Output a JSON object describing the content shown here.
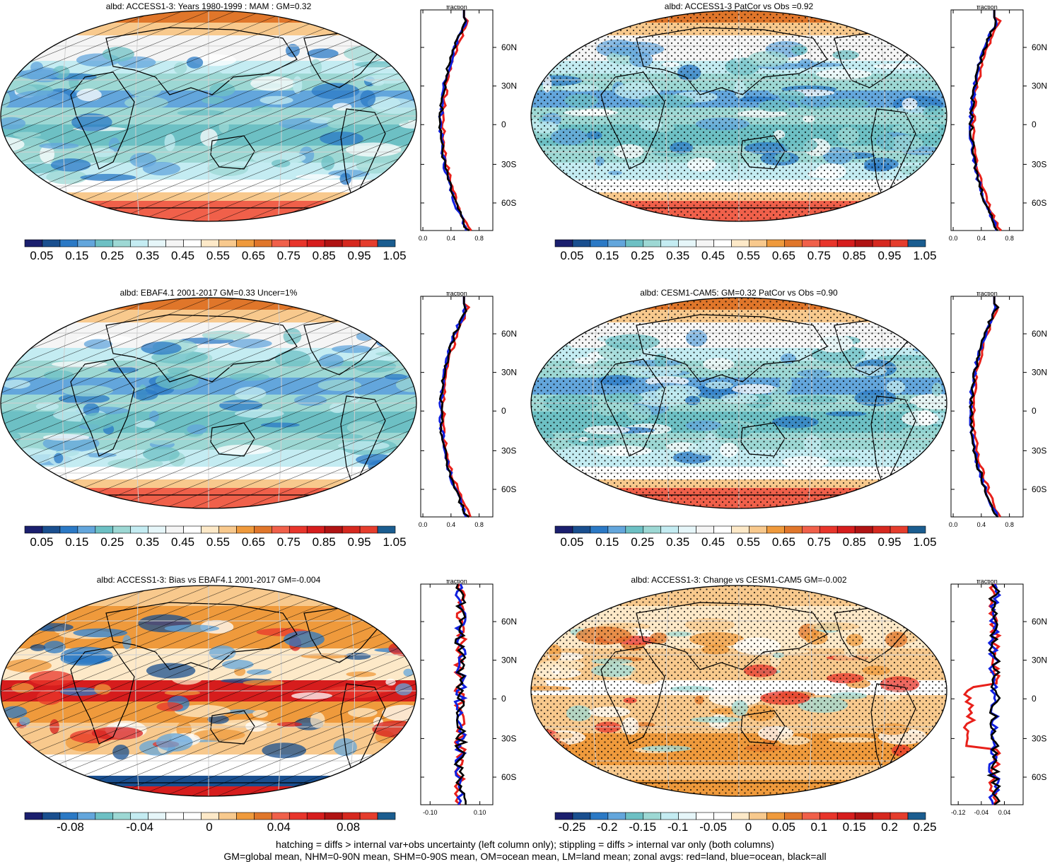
{
  "palette_abs": [
    "#1b1f6e",
    "#1a4f8f",
    "#2b79c5",
    "#63a6dc",
    "#6dc0c4",
    "#9dd8d4",
    "#c4ecf2",
    "#e6f6f9",
    "#f5f5f5",
    "#ffffff",
    "#fde9c8",
    "#f8c98d",
    "#ef9a3c",
    "#e0762a",
    "#f0604a",
    "#e8352b",
    "#d61d1d",
    "#b01313",
    "#d6281f",
    "#e53d2d",
    "#1b5d90"
  ],
  "palette_diff": [
    "#1b1f6e",
    "#1a4f8f",
    "#2b79c5",
    "#63a6dc",
    "#6dc0c4",
    "#9dd8d4",
    "#c4ecf2",
    "#e6f6f9",
    "#ffffff",
    "#ffffff",
    "#fde9c8",
    "#f8c98d",
    "#ef9a3c",
    "#e0762a",
    "#f0604a",
    "#e8352b",
    "#d61d1d",
    "#b01313",
    "#d6281f",
    "#e53d2d",
    "#1b5d90"
  ],
  "panels": [
    {
      "title": "albd: ACCESS1-3: Years 1980-1999 : MAM : GM=0.32",
      "kind": "abs",
      "overlay": "hatch",
      "cbar_labels": [
        "0.05",
        "0.15",
        "0.25",
        "0.35",
        "0.45",
        "0.55",
        "0.65",
        "0.75",
        "0.85",
        "0.95",
        "1.05"
      ],
      "zonal_header": "fraction",
      "zonal_xticks": [
        "0.0",
        "0.4",
        "0.8"
      ],
      "zonal_yticks": [
        "60N",
        "30N",
        "0",
        "30S",
        "60S"
      ]
    },
    {
      "title": "albd: ACCESS1-3 PatCor vs Obs =0.92",
      "kind": "abs",
      "overlay": "stipple",
      "cbar_labels": [
        "0.05",
        "0.15",
        "0.25",
        "0.35",
        "0.45",
        "0.55",
        "0.65",
        "0.75",
        "0.85",
        "0.95",
        "1.05"
      ],
      "zonal_header": "fraction",
      "zonal_xticks": [
        "0.0",
        "0.4",
        "0.8"
      ],
      "zonal_yticks": [
        "60N",
        "30N",
        "0",
        "30S",
        "60S"
      ]
    },
    {
      "title": "albd: EBAF4.1 2001-2017 GM=0.33 Uncer=1%",
      "kind": "abs",
      "overlay": "hatch",
      "cbar_labels": [
        "0.05",
        "0.15",
        "0.25",
        "0.35",
        "0.45",
        "0.55",
        "0.65",
        "0.75",
        "0.85",
        "0.95",
        "1.05"
      ],
      "zonal_header": "fraction",
      "zonal_xticks": [
        "0.0",
        "0.4",
        "0.8"
      ],
      "zonal_yticks": [
        "60N",
        "30N",
        "0",
        "30S",
        "60S"
      ]
    },
    {
      "title": "albd: CESM1-CAM5: GM=0.32 PatCor vs Obs =0.90",
      "kind": "abs",
      "overlay": "stipple",
      "cbar_labels": [
        "0.05",
        "0.15",
        "0.25",
        "0.35",
        "0.45",
        "0.55",
        "0.65",
        "0.75",
        "0.85",
        "0.95",
        "1.05"
      ],
      "zonal_header": "fraction",
      "zonal_xticks": [
        "0.0",
        "0.4",
        "0.8"
      ],
      "zonal_yticks": [
        "60N",
        "30N",
        "0",
        "30S",
        "60S"
      ]
    },
    {
      "title": "albd: ACCESS1-3: Bias vs EBAF4.1 2001-2017 GM=-0.004",
      "kind": "bias",
      "overlay": "hatch",
      "cbar_labels": [
        "-0.08",
        "-0.04",
        "0",
        "0.04",
        "0.08"
      ],
      "zonal_header": "fraction",
      "zonal_xticks": [
        "-0.10",
        "0.10"
      ],
      "zonal_yticks": [
        "60N",
        "30N",
        "0",
        "30S",
        "60S"
      ]
    },
    {
      "title": "albd: ACCESS1-3: Change vs CESM1-CAM5 GM=-0.002",
      "kind": "change",
      "overlay": "stipple",
      "cbar_labels": [
        "-0.25",
        "-0.2",
        "-0.15",
        "-0.1",
        "-0.05",
        "0",
        "0.05",
        "0.1",
        "0.15",
        "0.2",
        "0.25"
      ],
      "zonal_header": "fraction",
      "zonal_xticks": [
        "-0.12",
        "-0.04",
        "0.04"
      ],
      "zonal_yticks": [
        "60N",
        "30N",
        "0",
        "30S",
        "60S"
      ]
    }
  ],
  "footnote_1": "hatching = diffs > internal var+obs uncertainty (left column only); stippling = diffs > internal var only (both columns)",
  "footnote_2": "GM=global mean, NHM=0-90N mean, SHM=0-90S mean, OM=ocean mean, LM=land mean; zonal avgs: red=land, blue=ocean, black=all"
}
